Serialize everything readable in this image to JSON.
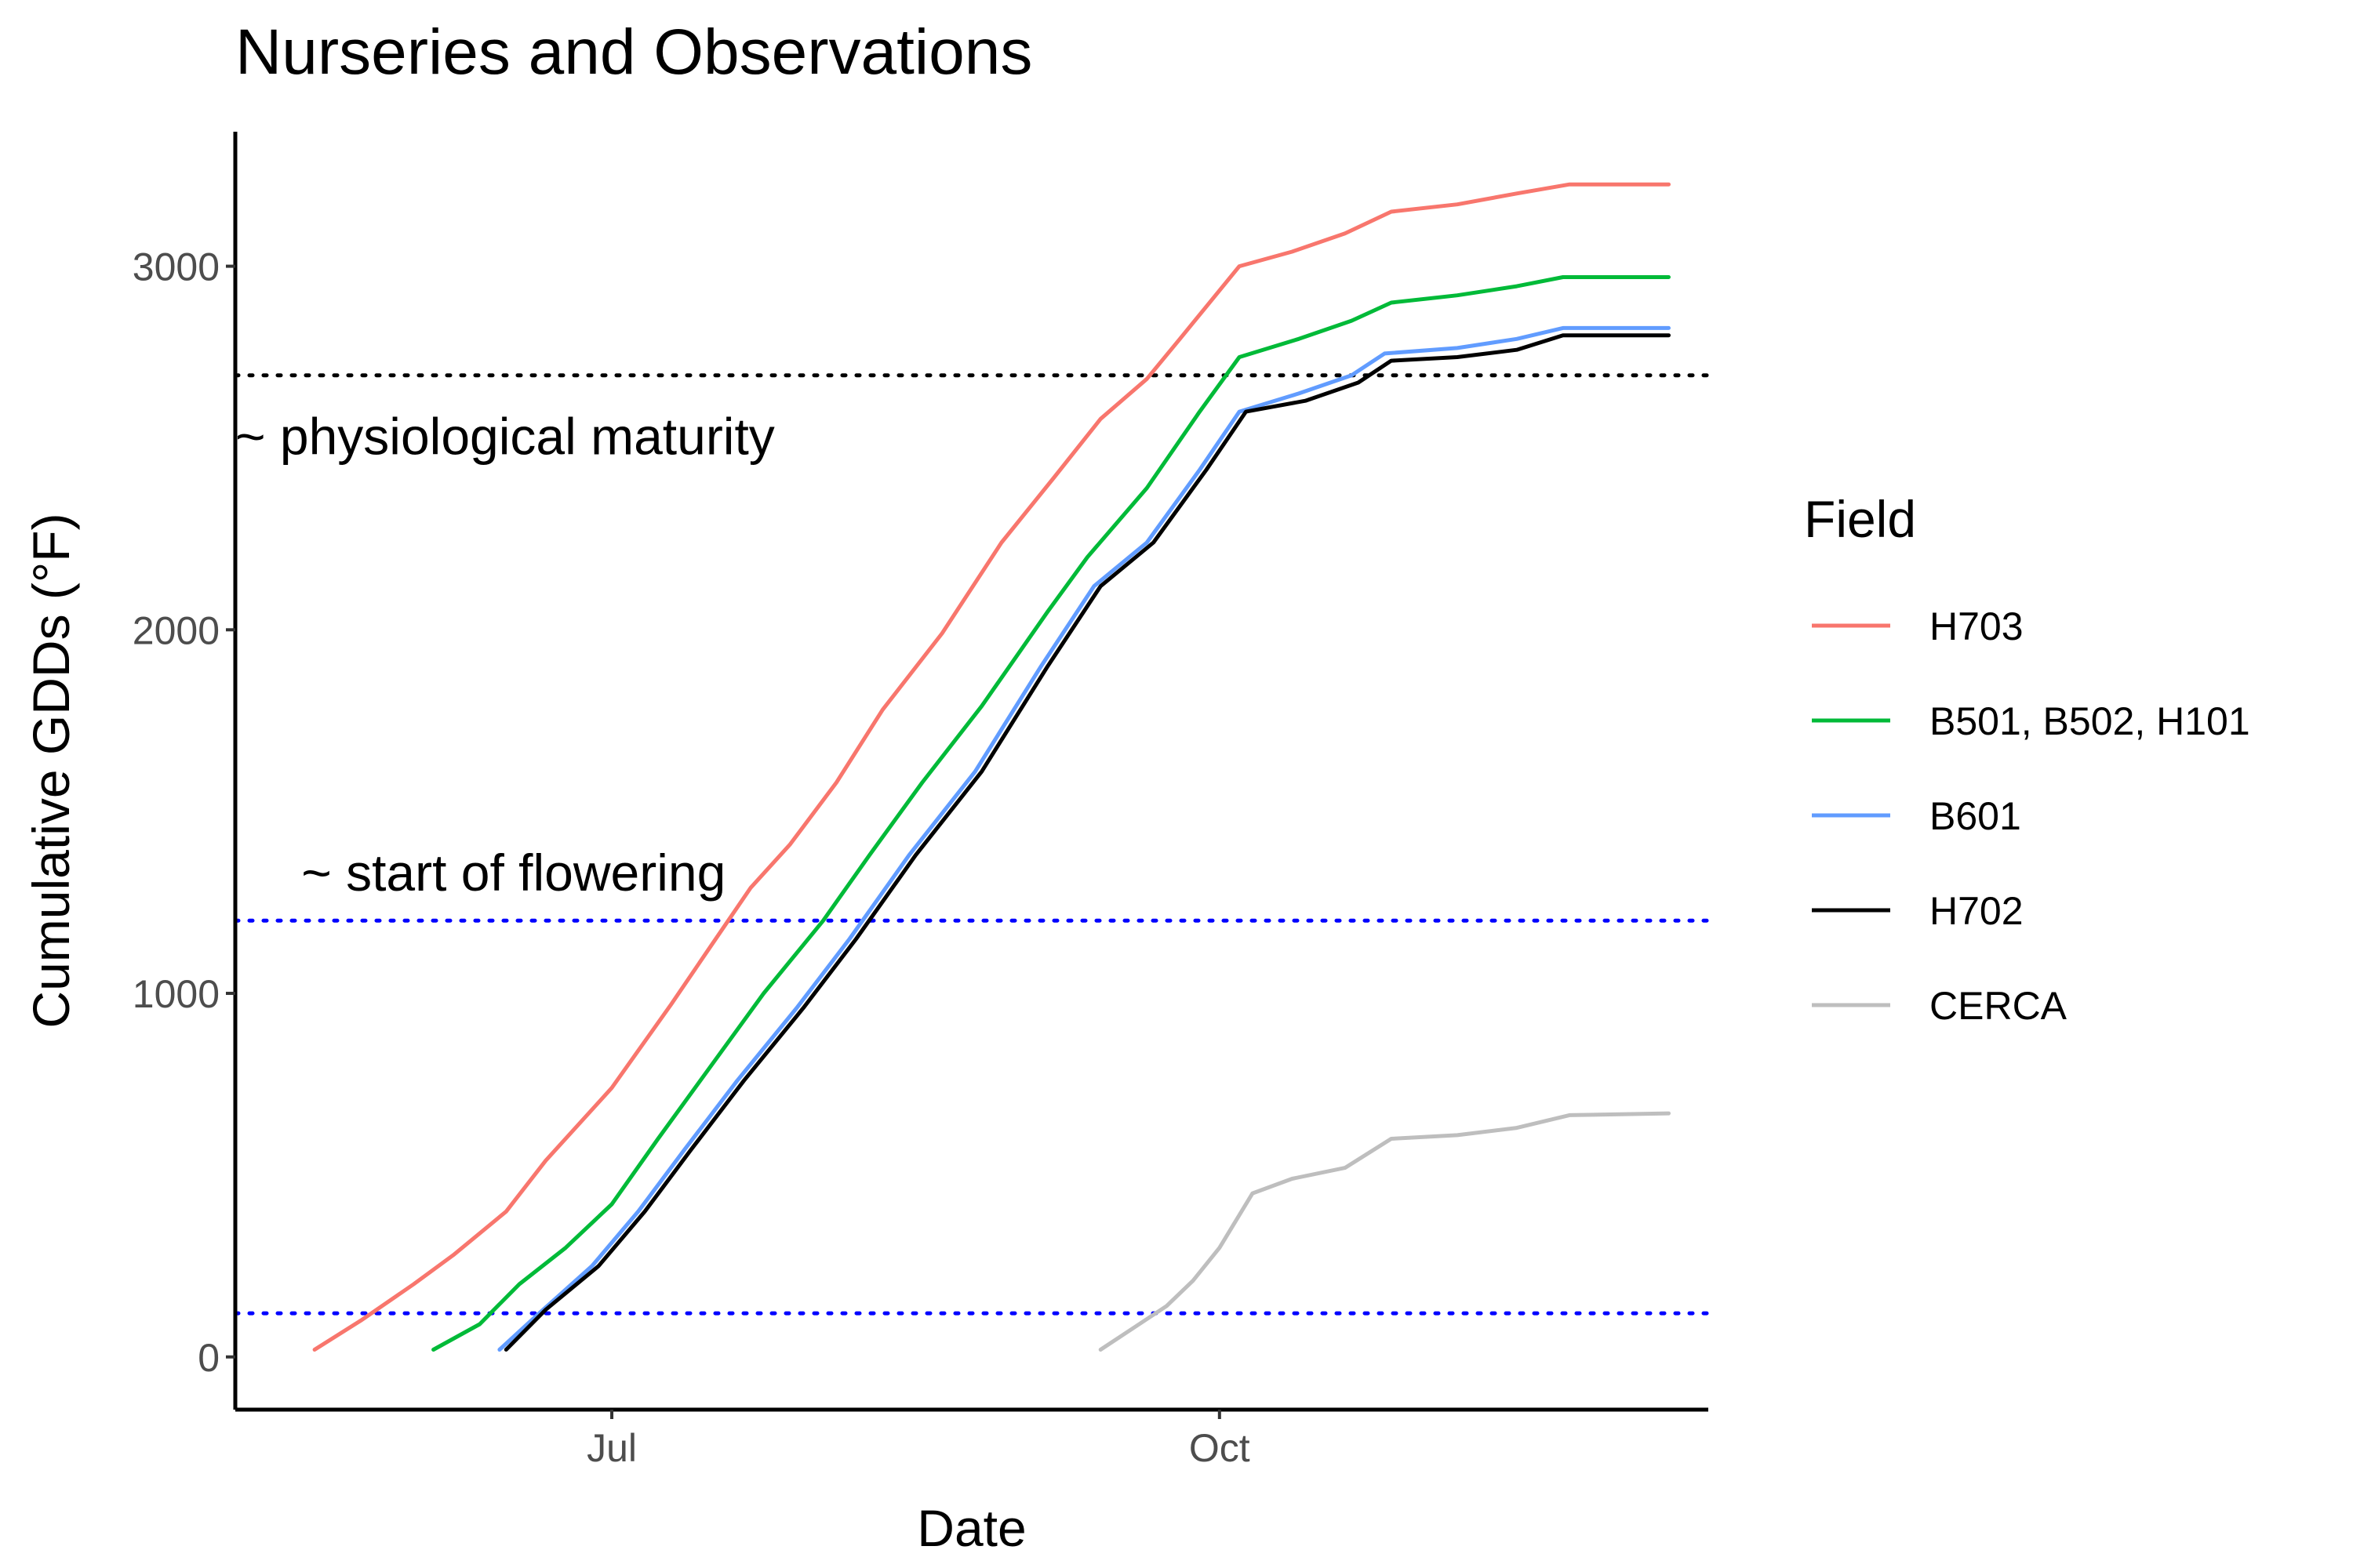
{
  "chart_data": {
    "type": "line",
    "title": "Nurseries and Observations",
    "xlabel": "Date",
    "ylabel": "Cumulative GDDs (°F)",
    "xlim": [
      "2023-05-05",
      "2023-12-14"
    ],
    "ylim": [
      -145,
      3370
    ],
    "x_ticks": [
      {
        "label": "Jul",
        "date": "2023-07-01"
      },
      {
        "label": "Oct",
        "date": "2023-10-01"
      }
    ],
    "y_ticks": [
      0,
      1000,
      2000,
      3000
    ],
    "grid": false,
    "legend": {
      "title": "Field",
      "position": "right"
    },
    "reference_lines": [
      {
        "y": 2700,
        "color": "#000000",
        "style": "dotted"
      },
      {
        "y": 1200,
        "color": "#0000ff",
        "style": "dotted"
      },
      {
        "y": 120,
        "color": "#0000ff",
        "style": "dotted"
      }
    ],
    "annotations": [
      {
        "text": "~ physiological maturity",
        "date": "2023-05-05",
        "y": 2530,
        "anchor": "start"
      },
      {
        "text": "~ start of flowering",
        "date": "2023-05-15",
        "y": 1330,
        "anchor": "start"
      }
    ],
    "series": [
      {
        "name": "H703",
        "color": "#F8766D",
        "points": [
          [
            "2023-05-17",
            20
          ],
          [
            "2023-05-24",
            100
          ],
          [
            "2023-06-01",
            200
          ],
          [
            "2023-06-07",
            280
          ],
          [
            "2023-06-15",
            400
          ],
          [
            "2023-06-21",
            540
          ],
          [
            "2023-07-01",
            740
          ],
          [
            "2023-07-10",
            970
          ],
          [
            "2023-07-16",
            1130
          ],
          [
            "2023-07-22",
            1290
          ],
          [
            "2023-07-28",
            1410
          ],
          [
            "2023-08-04",
            1580
          ],
          [
            "2023-08-11",
            1780
          ],
          [
            "2023-08-20",
            1990
          ],
          [
            "2023-08-29",
            2240
          ],
          [
            "2023-09-06",
            2420
          ],
          [
            "2023-09-13",
            2580
          ],
          [
            "2023-09-20",
            2690
          ],
          [
            "2023-09-25",
            2800
          ],
          [
            "2023-10-04",
            3000
          ],
          [
            "2023-10-12",
            3040
          ],
          [
            "2023-10-20",
            3090
          ],
          [
            "2023-10-27",
            3150
          ],
          [
            "2023-11-06",
            3170
          ],
          [
            "2023-11-15",
            3200
          ],
          [
            "2023-11-23",
            3225
          ],
          [
            "2023-12-08",
            3225
          ]
        ]
      },
      {
        "name": "B501, B502, H101",
        "color": "#00BA38",
        "points": [
          [
            "2023-06-04",
            20
          ],
          [
            "2023-06-11",
            90
          ],
          [
            "2023-06-17",
            200
          ],
          [
            "2023-06-24",
            300
          ],
          [
            "2023-07-01",
            420
          ],
          [
            "2023-07-08",
            600
          ],
          [
            "2023-07-16",
            800
          ],
          [
            "2023-07-24",
            1000
          ],
          [
            "2023-08-02",
            1200
          ],
          [
            "2023-08-09",
            1380
          ],
          [
            "2023-08-17",
            1580
          ],
          [
            "2023-08-26",
            1790
          ],
          [
            "2023-09-05",
            2050
          ],
          [
            "2023-09-11",
            2200
          ],
          [
            "2023-09-20",
            2390
          ],
          [
            "2023-09-28",
            2600
          ],
          [
            "2023-10-04",
            2750
          ],
          [
            "2023-10-13",
            2800
          ],
          [
            "2023-10-21",
            2850
          ],
          [
            "2023-10-27",
            2900
          ],
          [
            "2023-11-06",
            2920
          ],
          [
            "2023-11-15",
            2945
          ],
          [
            "2023-11-22",
            2970
          ],
          [
            "2023-12-08",
            2970
          ]
        ]
      },
      {
        "name": "B601",
        "color": "#619CFF",
        "points": [
          [
            "2023-06-14",
            20
          ],
          [
            "2023-06-20",
            120
          ],
          [
            "2023-06-28",
            250
          ],
          [
            "2023-07-05",
            400
          ],
          [
            "2023-07-12",
            570
          ],
          [
            "2023-07-20",
            760
          ],
          [
            "2023-07-29",
            960
          ],
          [
            "2023-08-06",
            1150
          ],
          [
            "2023-08-15",
            1380
          ],
          [
            "2023-08-25",
            1610
          ],
          [
            "2023-09-04",
            1900
          ],
          [
            "2023-09-12",
            2120
          ],
          [
            "2023-09-20",
            2240
          ],
          [
            "2023-09-28",
            2440
          ],
          [
            "2023-10-04",
            2600
          ],
          [
            "2023-10-13",
            2650
          ],
          [
            "2023-10-21",
            2700
          ],
          [
            "2023-10-26",
            2760
          ],
          [
            "2023-11-06",
            2775
          ],
          [
            "2023-11-15",
            2800
          ],
          [
            "2023-11-22",
            2830
          ],
          [
            "2023-12-08",
            2830
          ]
        ]
      },
      {
        "name": "H702",
        "color": "#000000",
        "points": [
          [
            "2023-06-15",
            20
          ],
          [
            "2023-06-21",
            130
          ],
          [
            "2023-06-29",
            250
          ],
          [
            "2023-07-06",
            400
          ],
          [
            "2023-07-13",
            570
          ],
          [
            "2023-07-21",
            760
          ],
          [
            "2023-07-30",
            960
          ],
          [
            "2023-08-07",
            1150
          ],
          [
            "2023-08-16",
            1380
          ],
          [
            "2023-08-26",
            1610
          ],
          [
            "2023-09-05",
            1900
          ],
          [
            "2023-09-13",
            2120
          ],
          [
            "2023-09-21",
            2240
          ],
          [
            "2023-09-29",
            2440
          ],
          [
            "2023-10-05",
            2600
          ],
          [
            "2023-10-14",
            2630
          ],
          [
            "2023-10-22",
            2680
          ],
          [
            "2023-10-27",
            2740
          ],
          [
            "2023-11-06",
            2750
          ],
          [
            "2023-11-15",
            2770
          ],
          [
            "2023-11-22",
            2810
          ],
          [
            "2023-12-08",
            2810
          ]
        ]
      },
      {
        "name": "CERCA",
        "color": "#BEBEBE",
        "points": [
          [
            "2023-09-13",
            20
          ],
          [
            "2023-09-18",
            80
          ],
          [
            "2023-09-23",
            140
          ],
          [
            "2023-09-27",
            210
          ],
          [
            "2023-10-01",
            300
          ],
          [
            "2023-10-06",
            450
          ],
          [
            "2023-10-12",
            490
          ],
          [
            "2023-10-20",
            520
          ],
          [
            "2023-10-27",
            600
          ],
          [
            "2023-11-06",
            610
          ],
          [
            "2023-11-15",
            630
          ],
          [
            "2023-11-23",
            665
          ],
          [
            "2023-12-08",
            670
          ]
        ]
      }
    ]
  }
}
